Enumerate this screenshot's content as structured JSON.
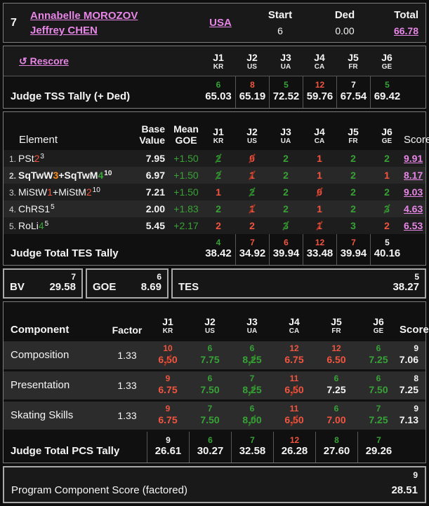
{
  "header": {
    "rank": "7",
    "name1": "Annabelle MOROZOV",
    "name2": "Jeffrey CHEN",
    "nation": "USA",
    "start_label": "Start",
    "start_value": "6",
    "ded_label": "Ded",
    "ded_value": "0.00",
    "total_label": "Total",
    "total_value": "66.78"
  },
  "rescore": {
    "icon": "↺",
    "label": "Rescore"
  },
  "judges": [
    {
      "id": "J1",
      "nation": "KR"
    },
    {
      "id": "J2",
      "nation": "US"
    },
    {
      "id": "J3",
      "nation": "UA"
    },
    {
      "id": "J4",
      "nation": "CA"
    },
    {
      "id": "J5",
      "nation": "FR"
    },
    {
      "id": "J6",
      "nation": "GE"
    }
  ],
  "tss": {
    "label": "Judge TSS Tally (+ Ded)",
    "cells": [
      {
        "rank": "6",
        "rank_color": "g",
        "value": "65.03"
      },
      {
        "rank": "8",
        "rank_color": "r",
        "value": "65.19"
      },
      {
        "rank": "5",
        "rank_color": "g",
        "value": "72.52"
      },
      {
        "rank": "12",
        "rank_color": "r",
        "value": "59.76"
      },
      {
        "rank": "7",
        "rank_color": "w",
        "value": "67.54"
      },
      {
        "rank": "5",
        "rank_color": "g",
        "value": "69.42"
      }
    ]
  },
  "elements": {
    "headers": {
      "element": "Element",
      "base_top": "Base",
      "base_bottom": "Value",
      "mean_top": "Mean",
      "mean_bottom": "GOE",
      "score": "Score"
    },
    "rows": [
      {
        "num": "1.",
        "bold": false,
        "sup": "3",
        "name_parts": [
          {
            "t": "PSt",
            "c": "w"
          },
          {
            "t": "2",
            "c": "r"
          }
        ],
        "base": "7.95",
        "goe": "+1.50",
        "judges": [
          {
            "v": "2",
            "c": "g",
            "sk": "hi"
          },
          {
            "v": "0",
            "c": "r",
            "sk": "lo"
          },
          {
            "v": "2",
            "c": "g"
          },
          {
            "v": "1",
            "c": "r"
          },
          {
            "v": "2",
            "c": "g"
          },
          {
            "v": "2",
            "c": "g"
          }
        ],
        "score": "9.91"
      },
      {
        "num": "2.",
        "bold": true,
        "sup": "10",
        "name_parts": [
          {
            "t": "SqTwW",
            "c": "w"
          },
          {
            "t": "3",
            "c": "o"
          },
          {
            "t": "+SqTwM",
            "c": "w"
          },
          {
            "t": "4",
            "c": "g"
          }
        ],
        "base": "6.97",
        "goe": "+1.50",
        "judges": [
          {
            "v": "2",
            "c": "g",
            "sk": "hi"
          },
          {
            "v": "1",
            "c": "r",
            "sk": "lo"
          },
          {
            "v": "2",
            "c": "g"
          },
          {
            "v": "1",
            "c": "r"
          },
          {
            "v": "2",
            "c": "g"
          },
          {
            "v": "1",
            "c": "r"
          }
        ],
        "score": "8.17"
      },
      {
        "num": "3.",
        "bold": false,
        "sup": "10",
        "name_parts": [
          {
            "t": "MiStW",
            "c": "w"
          },
          {
            "t": "1",
            "c": "r"
          },
          {
            "t": "+MiStM",
            "c": "w"
          },
          {
            "t": "2",
            "c": "r"
          }
        ],
        "base": "7.21",
        "goe": "+1.50",
        "judges": [
          {
            "v": "1",
            "c": "r"
          },
          {
            "v": "2",
            "c": "g",
            "sk": "hi"
          },
          {
            "v": "2",
            "c": "g"
          },
          {
            "v": "0",
            "c": "r",
            "sk": "lo"
          },
          {
            "v": "2",
            "c": "g"
          },
          {
            "v": "2",
            "c": "g"
          }
        ],
        "score": "9.03"
      },
      {
        "num": "4.",
        "bold": false,
        "sup": "5",
        "name_parts": [
          {
            "t": "ChRS1",
            "c": "w"
          }
        ],
        "base": "2.00",
        "goe": "+1.83",
        "judges": [
          {
            "v": "2",
            "c": "g"
          },
          {
            "v": "1",
            "c": "r",
            "sk": "lo"
          },
          {
            "v": "2",
            "c": "g"
          },
          {
            "v": "1",
            "c": "r"
          },
          {
            "v": "2",
            "c": "g"
          },
          {
            "v": "3",
            "c": "g",
            "sk": "hi"
          }
        ],
        "score": "4.63"
      },
      {
        "num": "5.",
        "bold": false,
        "sup": "5",
        "name_parts": [
          {
            "t": "RoLi",
            "c": "w"
          },
          {
            "t": "4",
            "c": "g"
          }
        ],
        "base": "5.45",
        "goe": "+2.17",
        "judges": [
          {
            "v": "2",
            "c": "r"
          },
          {
            "v": "2",
            "c": "r"
          },
          {
            "v": "3",
            "c": "g",
            "sk": "hi"
          },
          {
            "v": "1",
            "c": "r",
            "sk": "lo"
          },
          {
            "v": "3",
            "c": "g"
          },
          {
            "v": "2",
            "c": "r"
          }
        ],
        "score": "6.53"
      }
    ],
    "tes_tally": {
      "label": "Judge Total TES Tally",
      "cells": [
        {
          "rank": "4",
          "rank_color": "g",
          "value": "38.42"
        },
        {
          "rank": "7",
          "rank_color": "r",
          "value": "34.92"
        },
        {
          "rank": "6",
          "rank_color": "r",
          "value": "39.94"
        },
        {
          "rank": "12",
          "rank_color": "r",
          "value": "33.48"
        },
        {
          "rank": "7",
          "rank_color": "r",
          "value": "39.94"
        },
        {
          "rank": "5",
          "rank_color": "w",
          "value": "40.16"
        }
      ]
    }
  },
  "summary_boxes": {
    "bv": {
      "rank": "7",
      "label": "BV",
      "value": "29.58"
    },
    "goe": {
      "rank": "6",
      "label": "GOE",
      "value": "8.69"
    },
    "tes": {
      "rank": "5",
      "label": "TES",
      "value": "38.27"
    }
  },
  "components": {
    "headers": {
      "component": "Component",
      "factor": "Factor",
      "score": "Score"
    },
    "rows": [
      {
        "name": "Composition",
        "factor": "1.33",
        "judges": [
          {
            "rank": "10",
            "rc": "r",
            "score": "6.50",
            "sc": "r",
            "sk": "lo"
          },
          {
            "rank": "6",
            "rc": "g",
            "score": "7.75",
            "sc": "g"
          },
          {
            "rank": "6",
            "rc": "g",
            "score": "8.25",
            "sc": "g",
            "sk": "hi"
          },
          {
            "rank": "12",
            "rc": "r",
            "score": "6.75",
            "sc": "r"
          },
          {
            "rank": "12",
            "rc": "r",
            "score": "6.50",
            "sc": "r"
          },
          {
            "rank": "6",
            "rc": "g",
            "score": "7.25",
            "sc": "g"
          }
        ],
        "score_rank": "9",
        "score": "7.06"
      },
      {
        "name": "Presentation",
        "factor": "1.33",
        "judges": [
          {
            "rank": "9",
            "rc": "r",
            "score": "6.75",
            "sc": "r"
          },
          {
            "rank": "6",
            "rc": "g",
            "score": "7.50",
            "sc": "g"
          },
          {
            "rank": "7",
            "rc": "g",
            "score": "8.25",
            "sc": "g",
            "sk": "hi"
          },
          {
            "rank": "11",
            "rc": "r",
            "score": "6.50",
            "sc": "r",
            "sk": "lo"
          },
          {
            "rank": "6",
            "rc": "g",
            "score": "7.25",
            "sc": "w"
          },
          {
            "rank": "6",
            "rc": "g",
            "score": "7.50",
            "sc": "g"
          }
        ],
        "score_rank": "8",
        "score": "7.25"
      },
      {
        "name": "Skating Skills",
        "factor": "1.33",
        "judges": [
          {
            "rank": "9",
            "rc": "r",
            "score": "6.75",
            "sc": "r"
          },
          {
            "rank": "7",
            "rc": "g",
            "score": "7.50",
            "sc": "g"
          },
          {
            "rank": "6",
            "rc": "g",
            "score": "8.00",
            "sc": "g",
            "sk": "hi"
          },
          {
            "rank": "11",
            "rc": "r",
            "score": "6.50",
            "sc": "r",
            "sk": "lo"
          },
          {
            "rank": "6",
            "rc": "g",
            "score": "7.00",
            "sc": "r"
          },
          {
            "rank": "7",
            "rc": "g",
            "score": "7.25",
            "sc": "g"
          }
        ],
        "score_rank": "9",
        "score": "7.13"
      }
    ],
    "pcs_tally": {
      "label": "Judge Total PCS Tally",
      "cells": [
        {
          "rank": "9",
          "rank_color": "w",
          "value": "26.61"
        },
        {
          "rank": "6",
          "rank_color": "g",
          "value": "30.27"
        },
        {
          "rank": "7",
          "rank_color": "g",
          "value": "32.58"
        },
        {
          "rank": "12",
          "rank_color": "r",
          "value": "26.28"
        },
        {
          "rank": "8",
          "rank_color": "g",
          "value": "27.60"
        },
        {
          "rank": "7",
          "rank_color": "g",
          "value": "29.26"
        }
      ]
    }
  },
  "footer": {
    "rank": "9",
    "label": "Program Component Score (factored)",
    "value": "28.51"
  },
  "colors": {
    "link_pink": "#e786e7",
    "positive_green": "#37a337",
    "negative_red": "#f15540",
    "level3_orange": "#ff8c1a",
    "text_white": "#f5f5f5",
    "struck_high_green": "#2e7d28",
    "struck_low_red": "#a33522"
  }
}
